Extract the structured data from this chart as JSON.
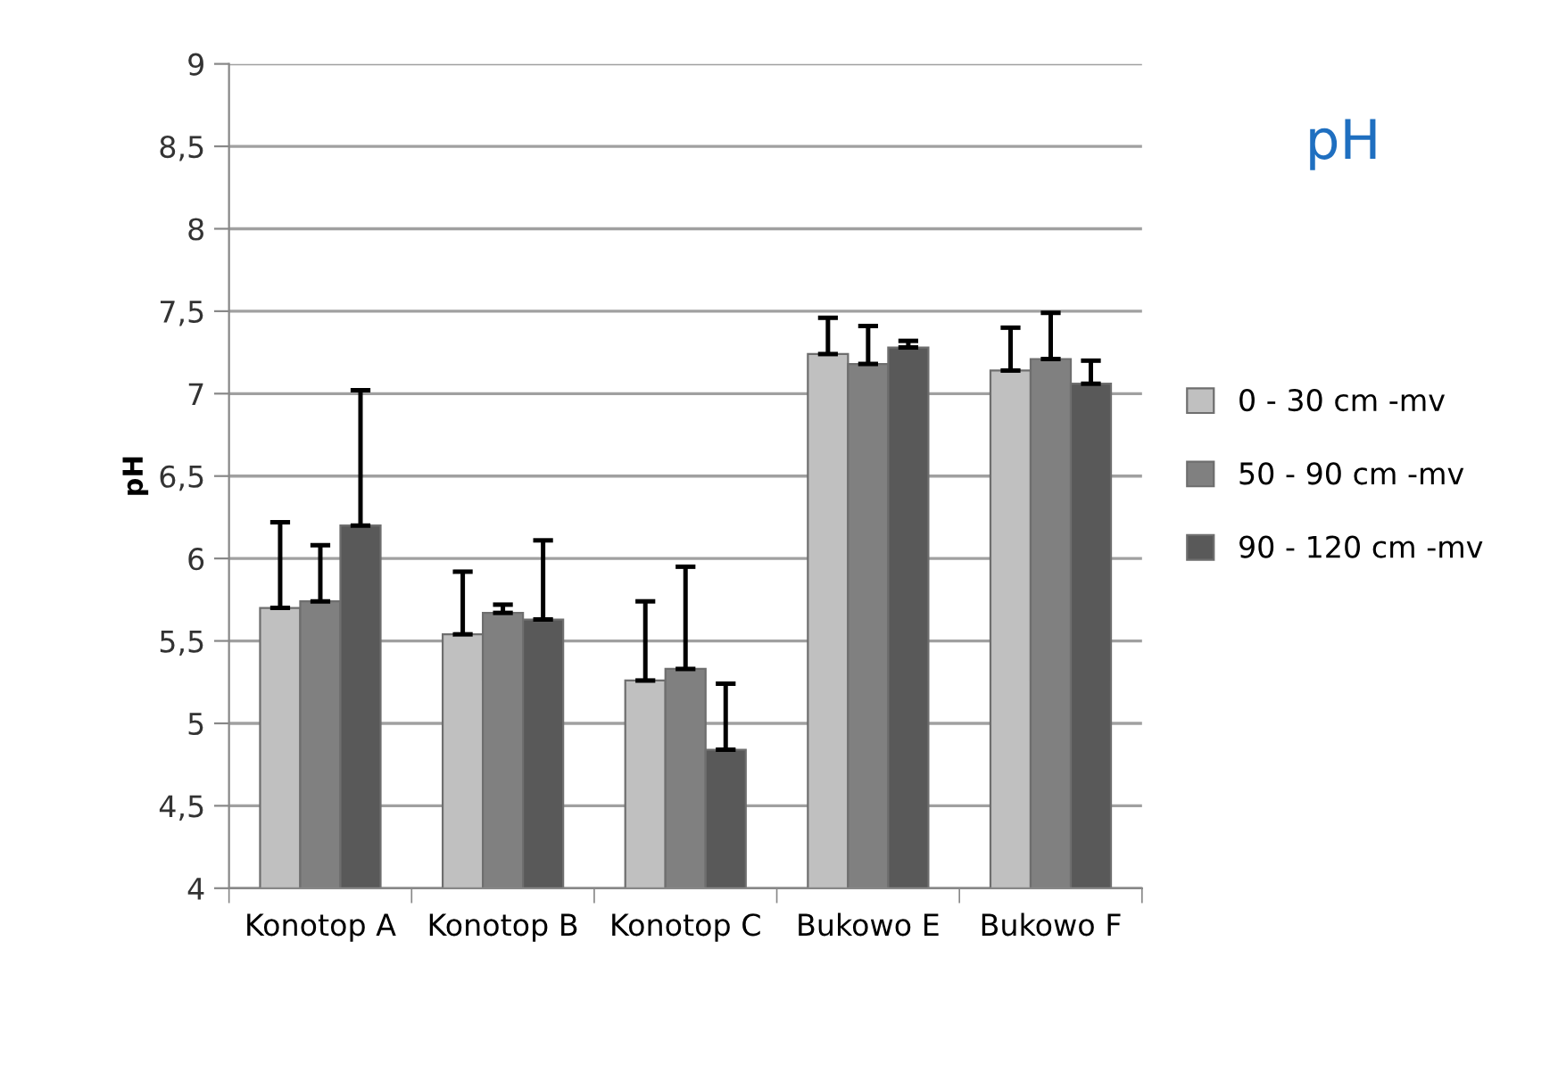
{
  "chart_data": {
    "type": "bar",
    "title": "pH",
    "ylabel": "pH",
    "categories": [
      "Konotop A",
      "Konotop B",
      "Konotop C",
      "Bukowo E",
      "Bukowo F"
    ],
    "series": [
      {
        "name": "0 - 30 cm -mv",
        "color": "#c0c0c0",
        "values": [
          5.7,
          5.54,
          5.26,
          7.24,
          7.14
        ],
        "errors": [
          [
            5.7,
            6.22
          ],
          [
            5.54,
            5.92
          ],
          [
            5.26,
            5.74
          ],
          [
            7.24,
            7.46
          ],
          [
            7.14,
            7.4
          ]
        ]
      },
      {
        "name": "50 - 90 cm -mv",
        "color": "#808080",
        "values": [
          5.74,
          5.67,
          5.33,
          7.18,
          7.21
        ],
        "errors": [
          [
            5.74,
            6.08
          ],
          [
            5.67,
            5.72
          ],
          [
            5.33,
            5.95
          ],
          [
            7.18,
            7.41
          ],
          [
            7.21,
            7.49
          ]
        ]
      },
      {
        "name": "90 - 120 cm -mv",
        "color": "#595959",
        "values": [
          6.2,
          5.63,
          4.84,
          7.28,
          7.06
        ],
        "errors": [
          [
            6.2,
            7.02
          ],
          [
            5.63,
            6.11
          ],
          [
            4.84,
            5.24
          ],
          [
            7.28,
            7.32
          ],
          [
            7.06,
            7.2
          ]
        ]
      }
    ],
    "ylim": [
      4,
      9
    ],
    "yticks": [
      {
        "value": 4,
        "label": "4"
      },
      {
        "value": 4.5,
        "label": "4,5"
      },
      {
        "value": 5,
        "label": "5"
      },
      {
        "value": 5.5,
        "label": "5,5"
      },
      {
        "value": 6,
        "label": "6"
      },
      {
        "value": 6.5,
        "label": "6,5"
      },
      {
        "value": 7,
        "label": "7"
      },
      {
        "value": 7.5,
        "label": "7,5"
      },
      {
        "value": 8,
        "label": "8"
      },
      {
        "value": 8.5,
        "label": "8,5"
      },
      {
        "value": 9,
        "label": "9"
      }
    ],
    "grid": "y",
    "legend": "right"
  }
}
